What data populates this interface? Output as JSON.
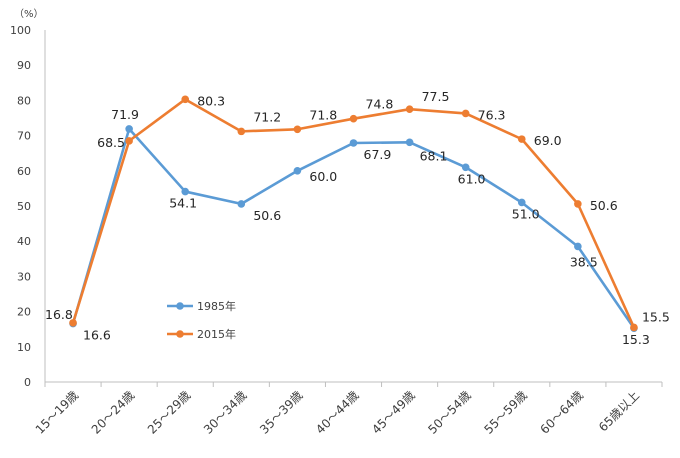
{
  "chart_data": {
    "type": "line",
    "unit_label": "（%）",
    "ylim": [
      0,
      100
    ],
    "yticks": [
      0,
      10,
      20,
      30,
      40,
      50,
      60,
      70,
      80,
      90,
      100
    ],
    "grid": false,
    "categories": [
      "15～19歳",
      "20～24歳",
      "25～29歳",
      "30～34歳",
      "35～39歳",
      "40～44歳",
      "45～49歳",
      "50～54歳",
      "55～59歳",
      "60～64歳",
      "65歳以上"
    ],
    "series": [
      {
        "name": "1985年",
        "color": "#5B9BD5",
        "values": [
          16.6,
          71.9,
          54.1,
          50.6,
          60.0,
          67.9,
          68.1,
          61.0,
          51.0,
          38.5,
          15.3
        ],
        "labels": [
          "16.6",
          "71.9",
          "54.1",
          "50.6",
          "60.0",
          "67.9",
          "68.1",
          "61.0",
          "51.0",
          "38.5",
          "15.3"
        ]
      },
      {
        "name": "2015年",
        "color": "#ED7D31",
        "values": [
          16.8,
          68.5,
          80.3,
          71.2,
          71.8,
          74.8,
          77.5,
          76.3,
          69.0,
          50.6,
          15.5
        ],
        "labels": [
          "16.8",
          "68.5",
          "80.3",
          "71.2",
          "71.8",
          "74.8",
          "77.5",
          "76.3",
          "69.0",
          "50.6",
          "15.5"
        ]
      }
    ],
    "legend_position": "inside-lower-left"
  }
}
